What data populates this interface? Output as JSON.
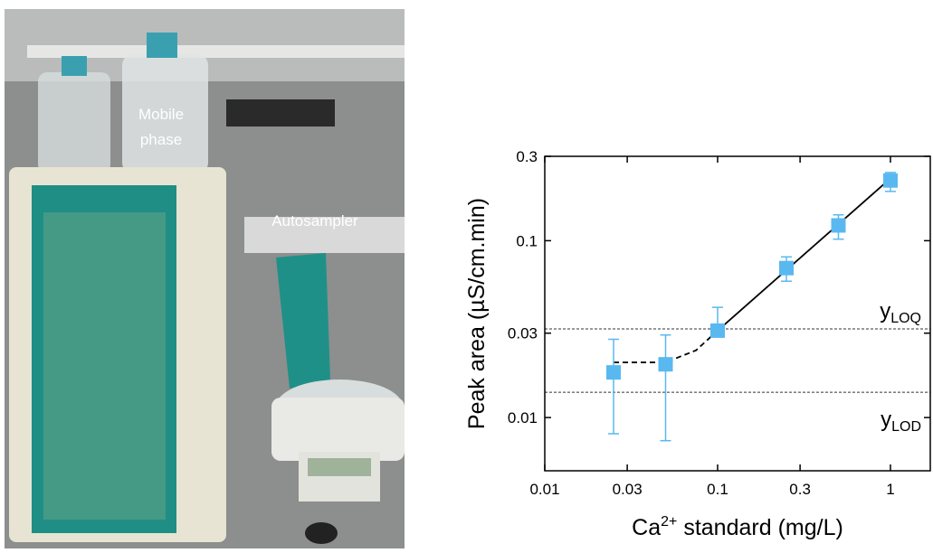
{
  "photo": {
    "labels": {
      "mobile_phase": [
        "Mobile",
        "phase"
      ],
      "autosampler": "Autosampler"
    }
  },
  "chart_data": {
    "type": "scatter",
    "x_label": {
      "text": "Ca",
      "sup": "2+",
      "rest": " standard (mg/L)"
    },
    "y_label": "Peak area (µS/cm.min)",
    "xscale": "log",
    "yscale": "log",
    "xlim": [
      0.01,
      1.7
    ],
    "ylim": [
      0.005,
      0.3
    ],
    "xticks": [
      0.01,
      0.03,
      0.1,
      0.3,
      1
    ],
    "yticks": [
      0.01,
      0.03,
      0.1,
      0.3
    ],
    "points": {
      "color": "#5ab8f0",
      "x": [
        0.025,
        0.05,
        0.1,
        0.25,
        0.5,
        1
      ],
      "values": [
        0.018,
        0.02,
        0.031,
        0.07,
        0.122,
        0.219
      ],
      "err_minus": [
        0.0099,
        0.0126,
        0.0024,
        0.011,
        0.02,
        0.029
      ],
      "err_plus": [
        0.0097,
        0.0093,
        0.011,
        0.011,
        0.018,
        0.024
      ]
    },
    "fits": [
      {
        "style": "dashed",
        "color": "#000000",
        "x": [
          0.025,
          0.05,
          0.075,
          0.1
        ],
        "values": [
          0.0205,
          0.0205,
          0.024,
          0.031
        ]
      },
      {
        "style": "solid",
        "color": "#000000",
        "x": [
          0.1,
          1
        ],
        "values": [
          0.031,
          0.225
        ]
      }
    ],
    "reference_lines": [
      {
        "value": 0.0317,
        "text": "y",
        "sub": "LOQ"
      },
      {
        "value": 0.0139,
        "text": "y",
        "sub": "LOD"
      }
    ]
  }
}
